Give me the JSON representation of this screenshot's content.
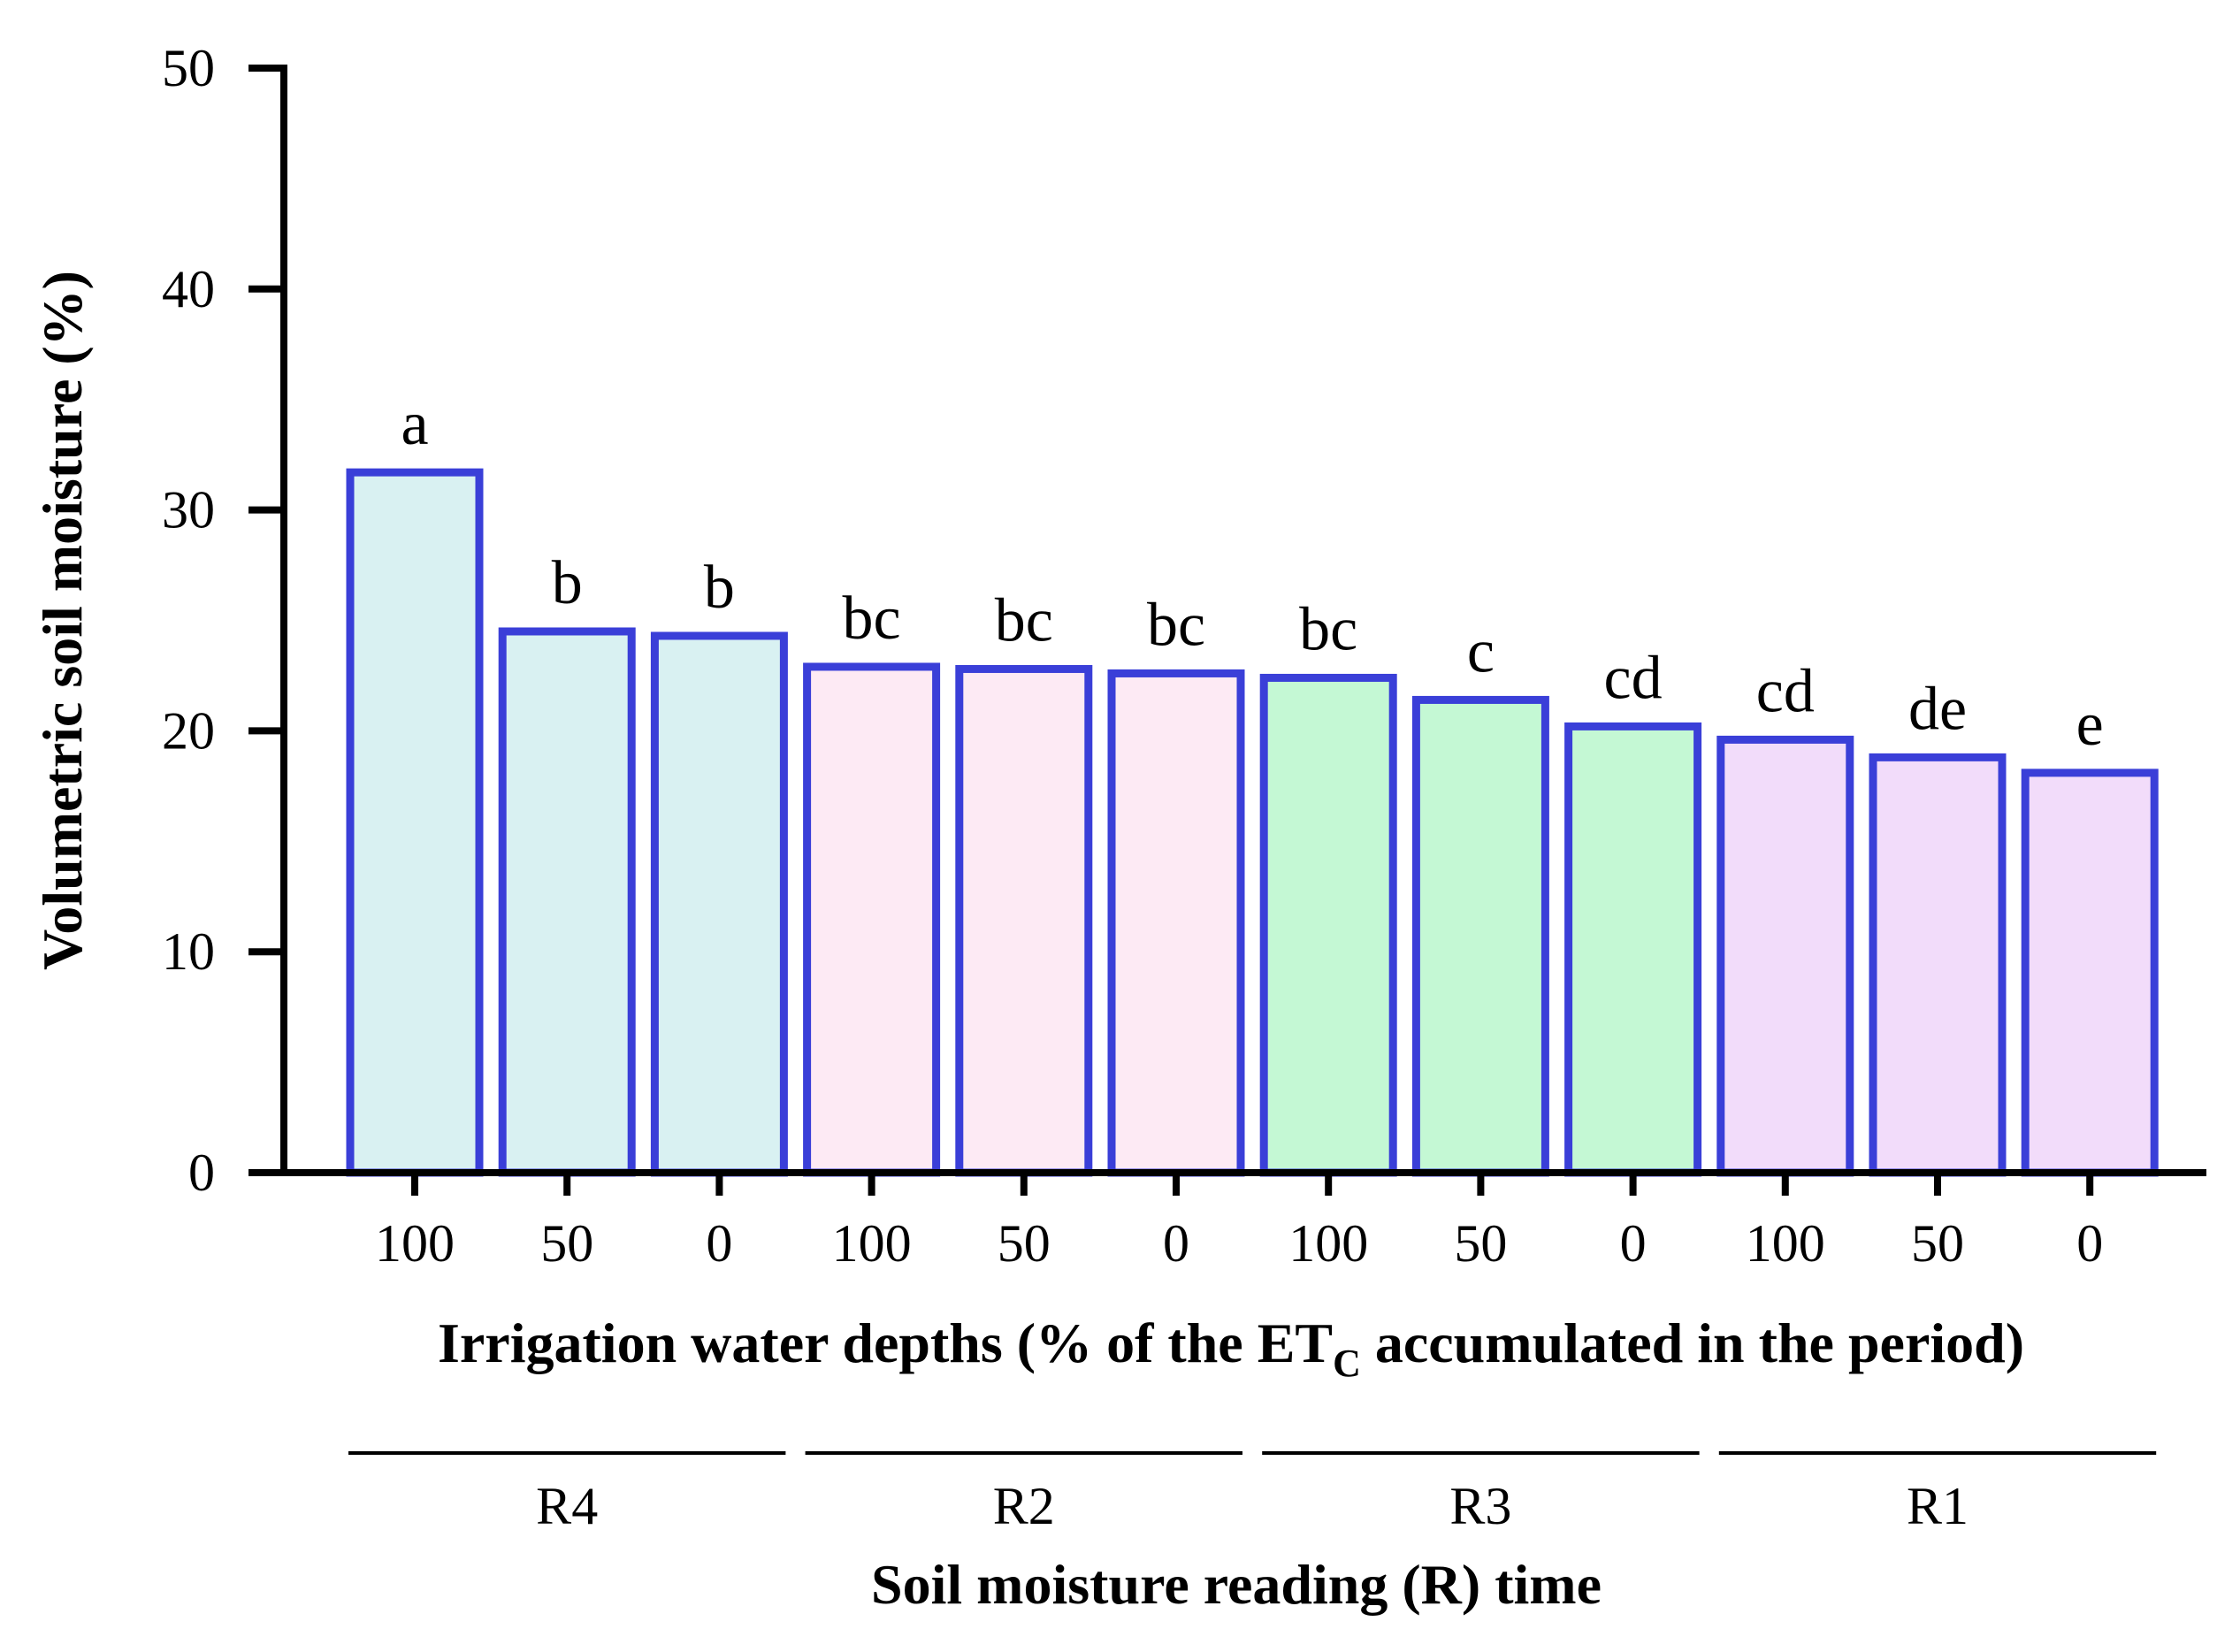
{
  "chart_data": {
    "type": "bar",
    "title": "",
    "ylabel": "Volumetric soil moisture (%)",
    "xlabel": {
      "main": "Irrigation water depths (% of the ET",
      "sub": "C",
      "rest": " accumulated in the period)"
    },
    "group_axis_label": "Soil moisture reading (R) time",
    "ylim": [
      0,
      50
    ],
    "yticks": [
      "0",
      "10",
      "20",
      "30",
      "40",
      "50"
    ],
    "categories": [
      "100",
      "50",
      "0",
      "100",
      "50",
      "0",
      "100",
      "50",
      "0",
      "100",
      "50",
      "0"
    ],
    "values": [
      31.7,
      24.5,
      24.3,
      22.9,
      22.8,
      22.6,
      22.4,
      21.4,
      20.2,
      19.6,
      18.8,
      18.1
    ],
    "significance_letters": [
      "a",
      "b",
      "b",
      "bc",
      "bc",
      "bc",
      "bc",
      "c",
      "cd",
      "cd",
      "de",
      "e"
    ],
    "groups": [
      {
        "name": "R4",
        "indices": [
          0,
          1,
          2
        ],
        "fill": "#d9f1f2"
      },
      {
        "name": "R2",
        "indices": [
          3,
          4,
          5
        ],
        "fill": "#fdeaf4"
      },
      {
        "name": "R3",
        "indices": [
          6,
          7,
          8
        ],
        "fill": "#c4f8d4"
      },
      {
        "name": "R1",
        "indices": [
          9,
          10,
          11
        ],
        "fill": "#f2dcfa"
      }
    ],
    "bar_outline_color": "#3a3fd8",
    "axis_color": "#000000",
    "grid": false
  }
}
